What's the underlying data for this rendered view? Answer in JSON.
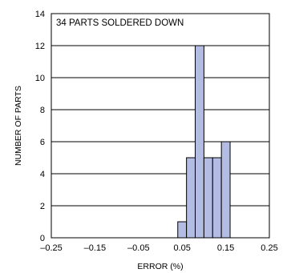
{
  "chart_data": {
    "type": "bar",
    "annotation": "34 PARTS SOLDERED DOWN",
    "xlabel": "ERROR (%)",
    "ylabel": "NUMBER OF PARTS",
    "xlim": [
      -0.25,
      0.25
    ],
    "ylim": [
      0,
      14
    ],
    "x_ticks": [
      "–0.25",
      "–0.15",
      "–0.05",
      "0.05",
      "0.15",
      "0.25"
    ],
    "x_tick_values": [
      -0.25,
      -0.15,
      -0.05,
      0.05,
      0.15,
      0.25
    ],
    "y_ticks": [
      "0",
      "2",
      "4",
      "6",
      "8",
      "10",
      "12",
      "14"
    ],
    "y_tick_values": [
      0,
      2,
      4,
      6,
      8,
      10,
      12,
      14
    ],
    "grid": "horizontal",
    "bin_width": 0.02,
    "bins": [
      {
        "start": 0.04,
        "end": 0.06,
        "count": 1
      },
      {
        "start": 0.06,
        "end": 0.08,
        "count": 5
      },
      {
        "start": 0.08,
        "end": 0.1,
        "count": 12
      },
      {
        "start": 0.1,
        "end": 0.12,
        "count": 5
      },
      {
        "start": 0.12,
        "end": 0.14,
        "count": 5
      },
      {
        "start": 0.14,
        "end": 0.16,
        "count": 6
      }
    ],
    "colors": {
      "bar_fill": "#b3bce3",
      "bar_stroke": "#000000",
      "grid": "#000000"
    }
  }
}
